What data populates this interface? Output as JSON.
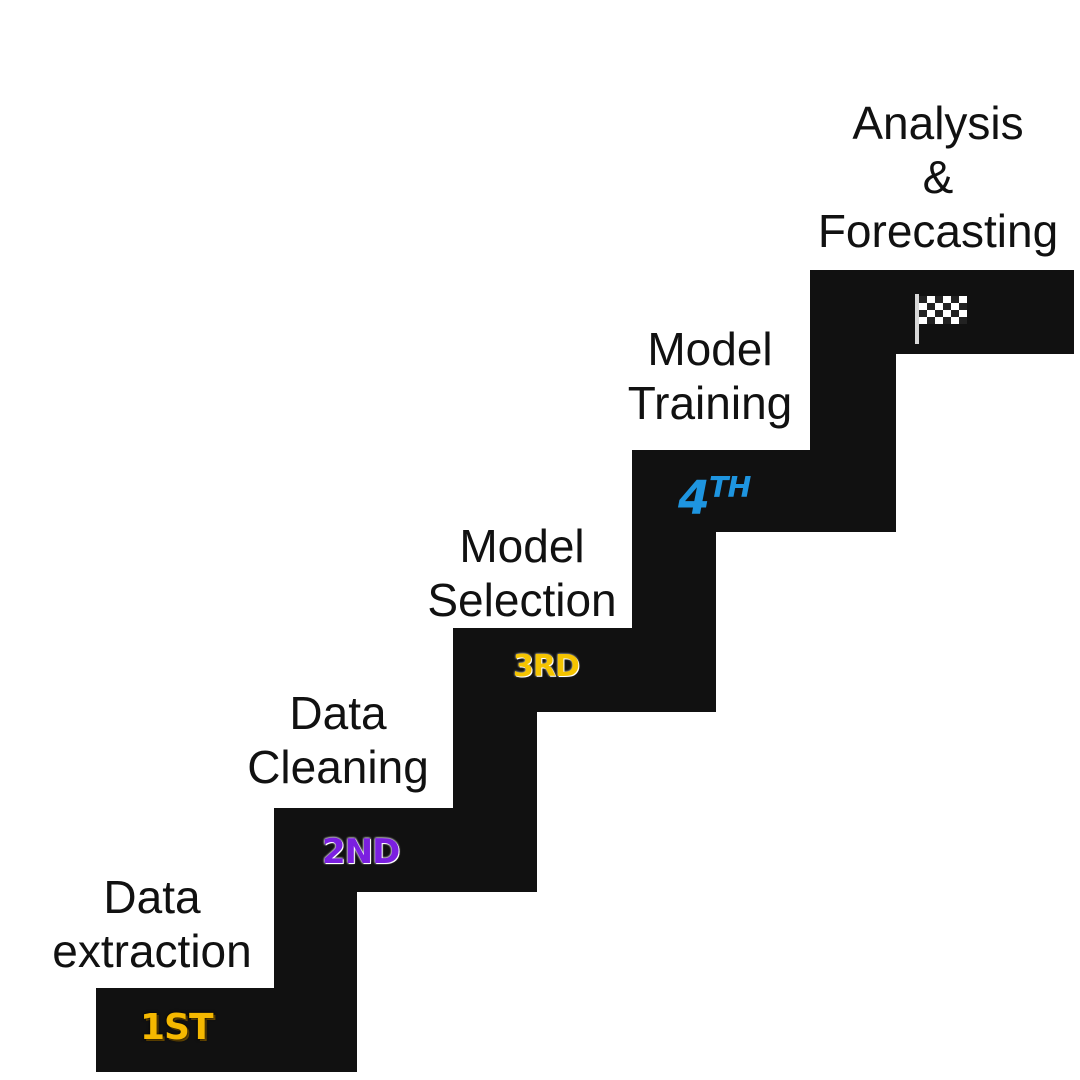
{
  "steps": [
    {
      "label_line1": "Data",
      "label_line2": "extraction",
      "badge": "1ST",
      "badge_color": "#F5B800"
    },
    {
      "label_line1": "Data",
      "label_line2": "Cleaning",
      "badge": "2ND",
      "badge_color": "#7B1FE0"
    },
    {
      "label_line1": "Model",
      "label_line2": "Selection",
      "badge": "3RD",
      "badge_color": "#F5C400"
    },
    {
      "label_line1": "Model",
      "label_line2": "Training",
      "badge_num": "4",
      "badge_suffix": "TH",
      "badge_color": "#1E95E0"
    },
    {
      "label_line1": "Analysis",
      "label_line2": "&",
      "label_line3": "Forecasting",
      "icon": "checkered-flag-icon"
    }
  ],
  "colors": {
    "stair": "#111111",
    "background": "#ffffff",
    "text": "#111111"
  }
}
